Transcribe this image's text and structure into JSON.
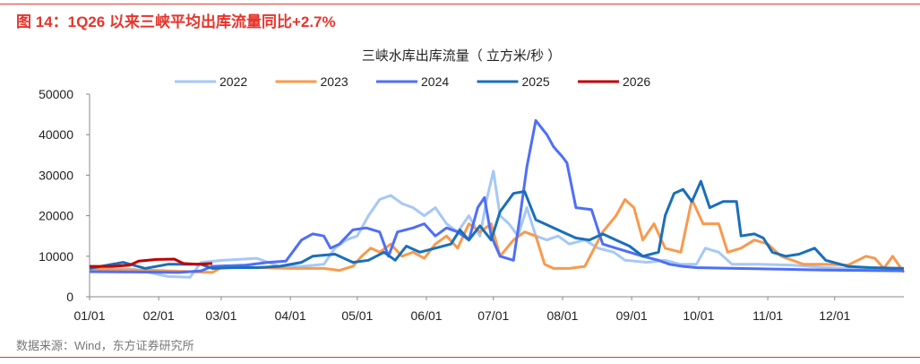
{
  "figure_title": "图 14：1Q26 以来三峡平均出库流量同比+2.7%",
  "source": "数据来源：Wind，东方证券研究所",
  "chart_data": {
    "type": "line",
    "title": "三峡水库出库流量（ 立方米/秒 ）",
    "xlabel": "",
    "ylabel": "",
    "ylim": [
      0,
      50000
    ],
    "yticks": [
      0,
      10000,
      20000,
      30000,
      40000,
      50000
    ],
    "xlim_day": [
      0,
      365
    ],
    "xticks": [
      {
        "label": "01/01",
        "day": 0
      },
      {
        "label": "02/01",
        "day": 31
      },
      {
        "label": "03/01",
        "day": 59
      },
      {
        "label": "04/01",
        "day": 90
      },
      {
        "label": "05/01",
        "day": 120
      },
      {
        "label": "06/01",
        "day": 151
      },
      {
        "label": "07/01",
        "day": 181
      },
      {
        "label": "08/01",
        "day": 212
      },
      {
        "label": "09/01",
        "day": 243
      },
      {
        "label": "10/01",
        "day": 273
      },
      {
        "label": "11/01",
        "day": 304
      },
      {
        "label": "12/01",
        "day": 334
      }
    ],
    "grid": false,
    "legend_position": "top-center",
    "x_unit": "day of year",
    "series": [
      {
        "name": "2022",
        "color": "#a6c8f5",
        "points": [
          [
            0,
            7000
          ],
          [
            20,
            6800
          ],
          [
            35,
            5000
          ],
          [
            45,
            4800
          ],
          [
            50,
            8500
          ],
          [
            60,
            9000
          ],
          [
            75,
            9500
          ],
          [
            85,
            7500
          ],
          [
            95,
            7500
          ],
          [
            105,
            8000
          ],
          [
            110,
            12000
          ],
          [
            115,
            14000
          ],
          [
            120,
            15000
          ],
          [
            125,
            20000
          ],
          [
            130,
            24000
          ],
          [
            135,
            25000
          ],
          [
            140,
            23000
          ],
          [
            145,
            22000
          ],
          [
            150,
            20000
          ],
          [
            155,
            22000
          ],
          [
            160,
            18000
          ],
          [
            165,
            16000
          ],
          [
            170,
            20000
          ],
          [
            175,
            15000
          ],
          [
            178,
            24000
          ],
          [
            181,
            31000
          ],
          [
            184,
            20000
          ],
          [
            188,
            18000
          ],
          [
            192,
            15000
          ],
          [
            196,
            22000
          ],
          [
            200,
            15000
          ],
          [
            205,
            14000
          ],
          [
            210,
            15000
          ],
          [
            215,
            13000
          ],
          [
            222,
            14000
          ],
          [
            228,
            12000
          ],
          [
            235,
            11000
          ],
          [
            240,
            9000
          ],
          [
            250,
            8500
          ],
          [
            258,
            9000
          ],
          [
            265,
            8000
          ],
          [
            272,
            8000
          ],
          [
            276,
            12000
          ],
          [
            282,
            11000
          ],
          [
            288,
            8000
          ],
          [
            300,
            8000
          ],
          [
            315,
            7800
          ],
          [
            330,
            7200
          ],
          [
            345,
            6800
          ],
          [
            365,
            6600
          ]
        ]
      },
      {
        "name": "2023",
        "color": "#f79a4e",
        "points": [
          [
            0,
            6800
          ],
          [
            30,
            6500
          ],
          [
            45,
            6200
          ],
          [
            55,
            6000
          ],
          [
            60,
            7500
          ],
          [
            75,
            7200
          ],
          [
            90,
            7000
          ],
          [
            105,
            7000
          ],
          [
            112,
            6500
          ],
          [
            118,
            7500
          ],
          [
            122,
            10000
          ],
          [
            126,
            12000
          ],
          [
            130,
            11000
          ],
          [
            135,
            13000
          ],
          [
            140,
            10000
          ],
          [
            145,
            11000
          ],
          [
            150,
            9500
          ],
          [
            155,
            13000
          ],
          [
            160,
            15000
          ],
          [
            165,
            12000
          ],
          [
            170,
            18000
          ],
          [
            175,
            16000
          ],
          [
            180,
            18000
          ],
          [
            184,
            10000
          ],
          [
            190,
            14000
          ],
          [
            195,
            16000
          ],
          [
            200,
            15000
          ],
          [
            204,
            8000
          ],
          [
            208,
            7000
          ],
          [
            215,
            7000
          ],
          [
            222,
            7500
          ],
          [
            230,
            16000
          ],
          [
            236,
            20000
          ],
          [
            240,
            24000
          ],
          [
            244,
            22000
          ],
          [
            248,
            14000
          ],
          [
            253,
            18000
          ],
          [
            258,
            12000
          ],
          [
            265,
            11000
          ],
          [
            270,
            24000
          ],
          [
            275,
            18000
          ],
          [
            282,
            18000
          ],
          [
            286,
            11000
          ],
          [
            292,
            12000
          ],
          [
            298,
            14000
          ],
          [
            304,
            13000
          ],
          [
            310,
            10000
          ],
          [
            320,
            8000
          ],
          [
            330,
            8000
          ],
          [
            340,
            7800
          ],
          [
            348,
            10000
          ],
          [
            352,
            9500
          ],
          [
            356,
            7000
          ],
          [
            360,
            10000
          ],
          [
            365,
            6000
          ]
        ]
      },
      {
        "name": "2024",
        "color": "#4f6ef7",
        "points": [
          [
            0,
            6200
          ],
          [
            20,
            6100
          ],
          [
            40,
            6000
          ],
          [
            50,
            6400
          ],
          [
            55,
            7500
          ],
          [
            70,
            7800
          ],
          [
            80,
            8500
          ],
          [
            88,
            8800
          ],
          [
            95,
            14000
          ],
          [
            100,
            15500
          ],
          [
            105,
            15000
          ],
          [
            108,
            12000
          ],
          [
            112,
            13000
          ],
          [
            118,
            16500
          ],
          [
            124,
            17000
          ],
          [
            130,
            16000
          ],
          [
            134,
            10000
          ],
          [
            138,
            16000
          ],
          [
            145,
            17000
          ],
          [
            150,
            18000
          ],
          [
            155,
            15000
          ],
          [
            160,
            17000
          ],
          [
            165,
            16000
          ],
          [
            170,
            14000
          ],
          [
            174,
            22000
          ],
          [
            177,
            24500
          ],
          [
            180,
            15000
          ],
          [
            184,
            10000
          ],
          [
            190,
            9000
          ],
          [
            193,
            20000
          ],
          [
            196,
            32000
          ],
          [
            200,
            43500
          ],
          [
            205,
            40000
          ],
          [
            208,
            37000
          ],
          [
            212,
            34500
          ],
          [
            214,
            33000
          ],
          [
            218,
            22000
          ],
          [
            225,
            21500
          ],
          [
            230,
            13000
          ],
          [
            236,
            12000
          ],
          [
            242,
            11000
          ],
          [
            248,
            10000
          ],
          [
            255,
            9000
          ],
          [
            260,
            8000
          ],
          [
            266,
            7500
          ],
          [
            272,
            7200
          ],
          [
            290,
            7000
          ],
          [
            310,
            6800
          ],
          [
            330,
            6600
          ],
          [
            365,
            6400
          ]
        ]
      },
      {
        "name": "2025",
        "color": "#1a6fb9",
        "points": [
          [
            0,
            7000
          ],
          [
            5,
            7500
          ],
          [
            15,
            8500
          ],
          [
            25,
            7000
          ],
          [
            35,
            8000
          ],
          [
            50,
            8000
          ],
          [
            55,
            7000
          ],
          [
            65,
            7200
          ],
          [
            75,
            7200
          ],
          [
            85,
            7500
          ],
          [
            95,
            8500
          ],
          [
            100,
            10000
          ],
          [
            110,
            10500
          ],
          [
            118,
            8500
          ],
          [
            125,
            9000
          ],
          [
            132,
            11000
          ],
          [
            137,
            9000
          ],
          [
            142,
            12500
          ],
          [
            148,
            11000
          ],
          [
            155,
            12000
          ],
          [
            162,
            13000
          ],
          [
            166,
            16500
          ],
          [
            170,
            14000
          ],
          [
            175,
            17500
          ],
          [
            180,
            14000
          ],
          [
            184,
            21000
          ],
          [
            190,
            25500
          ],
          [
            195,
            26000
          ],
          [
            200,
            19000
          ],
          [
            206,
            17500
          ],
          [
            212,
            16000
          ],
          [
            218,
            14500
          ],
          [
            224,
            14000
          ],
          [
            230,
            15500
          ],
          [
            236,
            14000
          ],
          [
            242,
            12500
          ],
          [
            248,
            10000
          ],
          [
            255,
            11000
          ],
          [
            258,
            20000
          ],
          [
            262,
            25500
          ],
          [
            266,
            26500
          ],
          [
            270,
            23500
          ],
          [
            274,
            28500
          ],
          [
            278,
            22000
          ],
          [
            284,
            23500
          ],
          [
            290,
            23500
          ],
          [
            292,
            15000
          ],
          [
            298,
            15500
          ],
          [
            302,
            14500
          ],
          [
            306,
            11000
          ],
          [
            312,
            10000
          ],
          [
            318,
            10500
          ],
          [
            325,
            12000
          ],
          [
            330,
            9000
          ],
          [
            340,
            7500
          ],
          [
            350,
            7200
          ],
          [
            365,
            7000
          ]
        ]
      },
      {
        "name": "2026",
        "color": "#c00000",
        "points": [
          [
            0,
            7500
          ],
          [
            10,
            7500
          ],
          [
            18,
            7800
          ],
          [
            22,
            8800
          ],
          [
            30,
            9200
          ],
          [
            38,
            9300
          ],
          [
            42,
            8200
          ],
          [
            48,
            8000
          ],
          [
            55,
            8200
          ]
        ]
      }
    ]
  }
}
